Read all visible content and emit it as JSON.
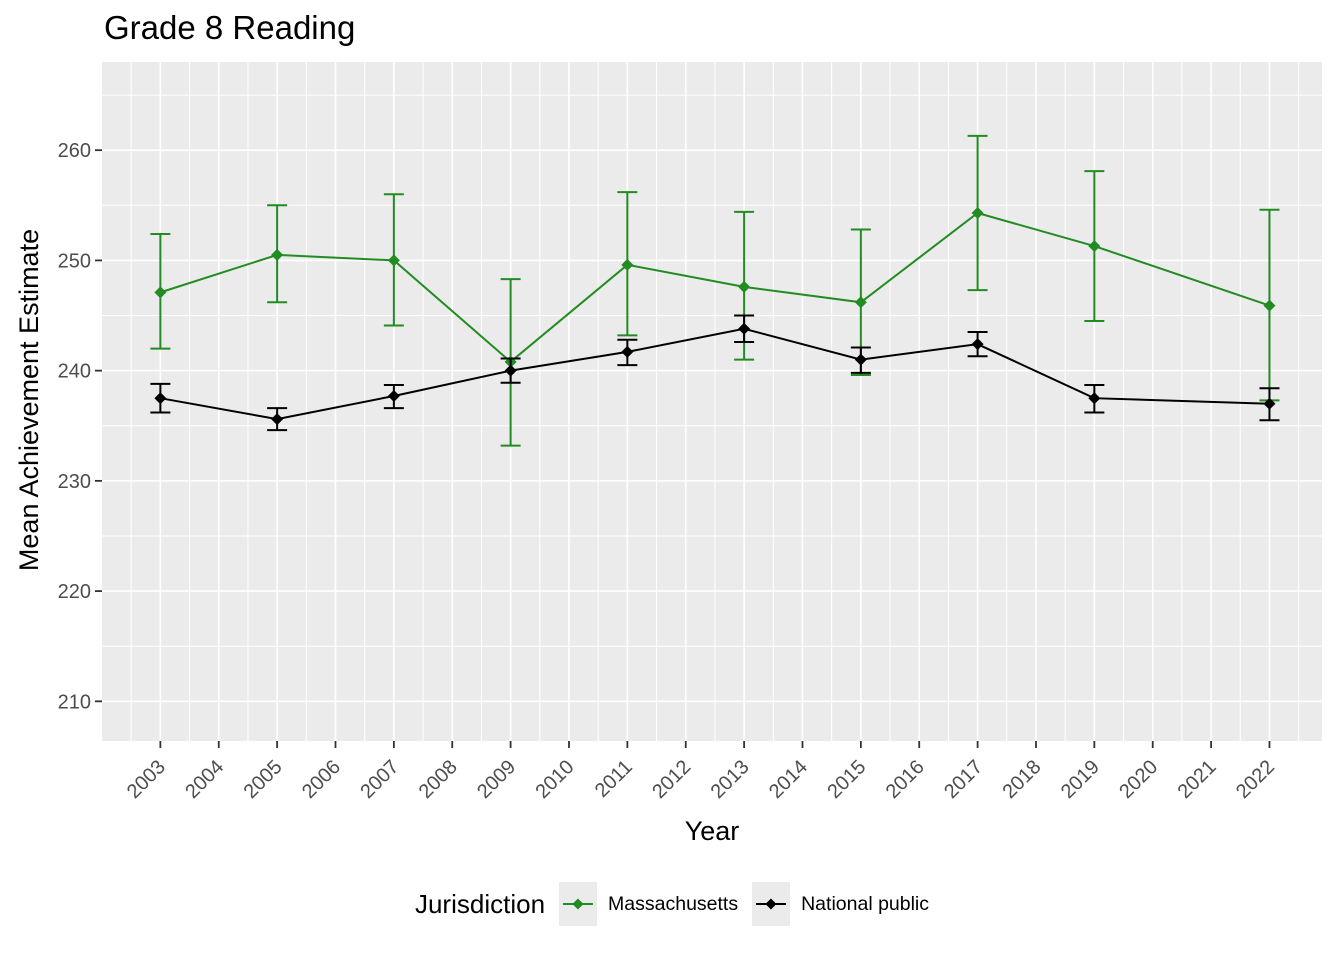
{
  "chart_data": {
    "type": "line",
    "title": "Grade 8 Reading",
    "xlabel": "Year",
    "ylabel": "Mean Achievement Estimate",
    "legend_title": "Jurisdiction",
    "legend_position": "bottom",
    "grid": true,
    "marker": "diamond",
    "error_bars": true,
    "x_ticks": [
      2003,
      2004,
      2005,
      2006,
      2007,
      2008,
      2009,
      2010,
      2011,
      2012,
      2013,
      2014,
      2015,
      2016,
      2017,
      2018,
      2019,
      2020,
      2021,
      2022
    ],
    "y_ticks": [
      210,
      220,
      230,
      240,
      250,
      260
    ],
    "xlim": [
      2002.0,
      2022.9
    ],
    "ylim": [
      206.4,
      268.0
    ],
    "x": [
      2003,
      2005,
      2007,
      2009,
      2011,
      2013,
      2015,
      2017,
      2019,
      2022
    ],
    "series": [
      {
        "name": "Massachusetts",
        "color": "#228B22",
        "values": [
          247.1,
          250.5,
          250.0,
          240.8,
          249.6,
          247.6,
          246.2,
          254.3,
          251.3,
          245.9
        ],
        "ci_low": [
          242.0,
          246.2,
          244.1,
          233.2,
          243.2,
          241.0,
          239.6,
          247.3,
          244.5,
          237.3
        ],
        "ci_high": [
          252.4,
          255.0,
          256.0,
          248.3,
          256.2,
          254.4,
          252.8,
          261.3,
          258.1,
          254.6
        ]
      },
      {
        "name": "National public",
        "color": "#000000",
        "values": [
          237.5,
          235.6,
          237.7,
          240.0,
          241.7,
          243.8,
          241.0,
          242.4,
          237.5,
          237.0
        ],
        "ci_low": [
          236.2,
          234.6,
          236.6,
          238.9,
          240.5,
          242.6,
          239.8,
          241.3,
          236.2,
          235.5
        ],
        "ci_high": [
          238.8,
          236.6,
          238.7,
          241.1,
          242.8,
          245.0,
          242.1,
          243.5,
          238.7,
          238.4
        ]
      }
    ]
  }
}
